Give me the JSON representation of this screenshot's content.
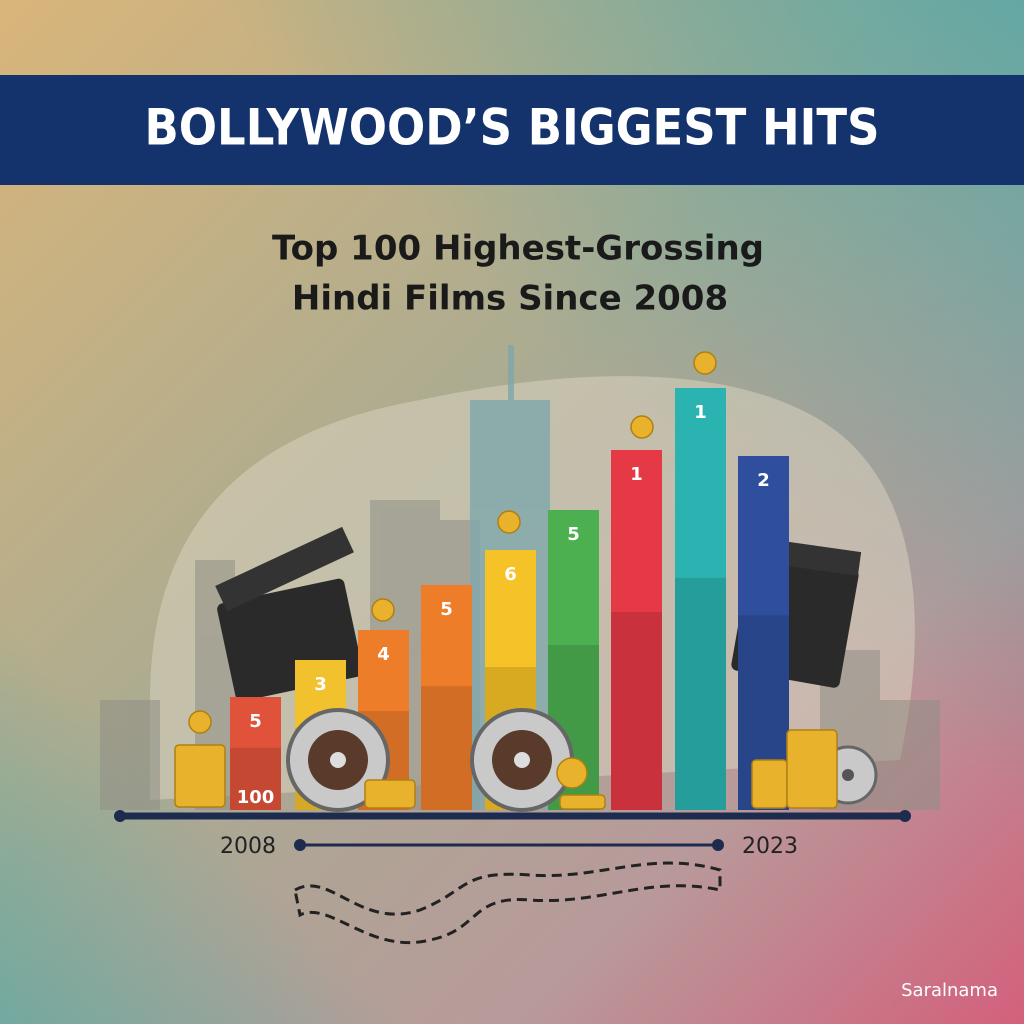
{
  "header": {
    "title": "BOLLYWOOD’S BIGGEST HITS"
  },
  "subtitle": {
    "line1": "Top 100 Highest-Grossing",
    "line2": "Hindi Films Since 2008"
  },
  "bars": [
    {
      "label": "5",
      "sublabel": "100"
    },
    {
      "label": "3"
    },
    {
      "label": "4"
    },
    {
      "label": "5"
    },
    {
      "label": "6"
    },
    {
      "label": "5"
    },
    {
      "label": "1"
    },
    {
      "label": "1"
    },
    {
      "label": "2"
    }
  ],
  "timeline": {
    "start": "2008",
    "end": "2023"
  },
  "credit": "Saralnama"
}
